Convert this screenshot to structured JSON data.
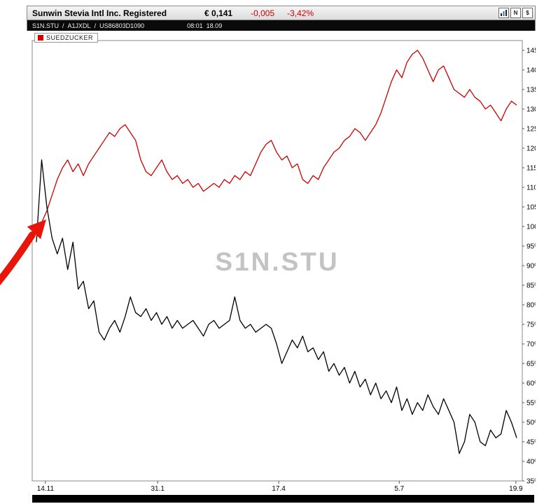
{
  "header": {
    "title": "Sunwin Stevia Intl Inc. Registered",
    "price": "€ 0,141",
    "change_abs": "-0,005",
    "change_pct": "-3,42%",
    "icons": {
      "chart": "bar-chart",
      "news_glyph": "N",
      "currency_glyph": "$"
    }
  },
  "infobar": {
    "symbol": "S1N.STU",
    "separator": "/",
    "wkn": "A1JXDL",
    "isin": "US86803D1090",
    "time": "08:01",
    "date": "18.09"
  },
  "legend": {
    "label": "SUEDZUCKER"
  },
  "watermark": "S1N.STU",
  "annotation": {
    "arrow_color": "#e8150a"
  },
  "colors": {
    "negative": "#cc0000",
    "series_red": "#cc0000",
    "series_black": "#000000",
    "watermark": "#c3c3c3",
    "infobar_bg": "#0a0a0a"
  },
  "chart_data": {
    "type": "line",
    "title": "",
    "xlabel": "",
    "ylabel": "",
    "ylim": [
      35,
      145
    ],
    "y_tick_step": 5,
    "y_tick_suffix": "%",
    "y_axis_side": "right",
    "grid": false,
    "legend_position": "top-left-inside",
    "x_ticks": [
      {
        "label": "14.11",
        "pos": 0.027
      },
      {
        "label": "31.1",
        "pos": 0.256
      },
      {
        "label": "17.4",
        "pos": 0.503
      },
      {
        "label": "5.7",
        "pos": 0.749
      },
      {
        "label": "19.9",
        "pos": 0.987
      }
    ],
    "series": [
      {
        "id": "suedzucker",
        "name": "SUEDZUCKER",
        "color": "#cc0000",
        "unit": "percent",
        "values": [
          100,
          101,
          104,
          108,
          112,
          115,
          117,
          114,
          116,
          113,
          116,
          118,
          120,
          122,
          124,
          123,
          125,
          126,
          124,
          122,
          117,
          114,
          113,
          115,
          117,
          114,
          112,
          113,
          111,
          112,
          110,
          111,
          109,
          110,
          111,
          110,
          112,
          111,
          113,
          112,
          114,
          113,
          116,
          119,
          121,
          122,
          119,
          117,
          118,
          115,
          116,
          112,
          111,
          113,
          112,
          115,
          117,
          119,
          120,
          122,
          123,
          125,
          124,
          122,
          124,
          126,
          129,
          133,
          137,
          140,
          138,
          142,
          144,
          145,
          143,
          140,
          137,
          140,
          141,
          138,
          135,
          134,
          133,
          135,
          133,
          132,
          130,
          131,
          129,
          127,
          130,
          132,
          131
        ]
      },
      {
        "id": "s1n-stu",
        "name": "S1N.STU",
        "color": "#000000",
        "unit": "percent",
        "values": [
          96,
          117,
          105,
          97,
          93,
          97,
          89,
          96,
          84,
          86,
          79,
          81,
          73,
          71,
          74,
          76,
          73,
          77,
          82,
          78,
          77,
          79,
          76,
          78,
          75,
          77,
          74,
          76,
          74,
          75,
          76,
          74,
          72,
          75,
          76,
          74,
          75,
          76,
          82,
          76,
          74,
          75,
          73,
          74,
          75,
          74,
          70,
          65,
          68,
          71,
          69,
          72,
          68,
          69,
          66,
          68,
          63,
          65,
          62,
          64,
          60,
          63,
          59,
          61,
          57,
          60,
          56,
          58,
          55,
          59,
          53,
          56,
          52,
          55,
          53,
          57,
          54,
          52,
          56,
          53,
          50,
          42,
          45,
          52,
          50,
          45,
          44,
          48,
          46,
          47,
          53,
          50,
          46
        ]
      }
    ]
  }
}
